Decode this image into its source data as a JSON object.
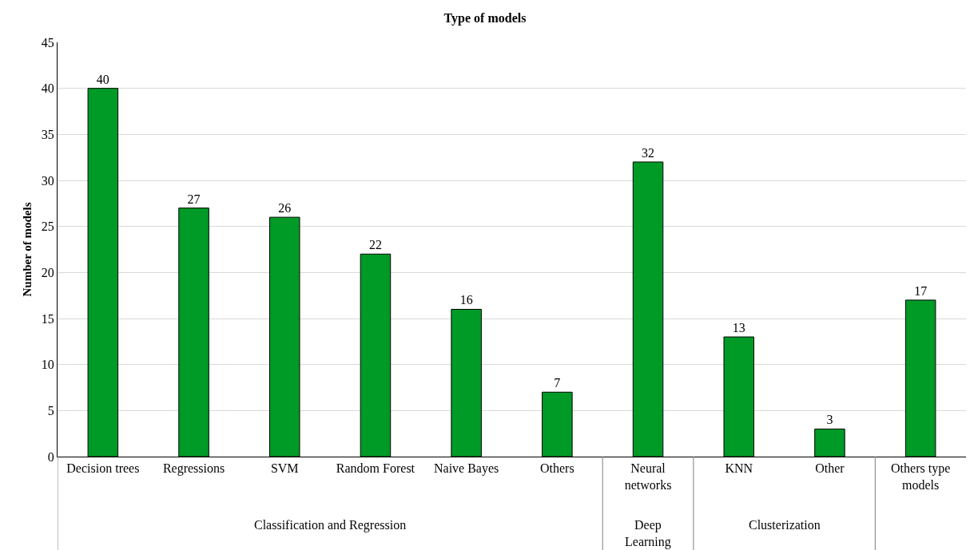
{
  "chart_data": {
    "type": "bar",
    "title": "Type of models",
    "ylabel": "Number of models",
    "categories": [
      "Decision trees",
      "Regressions",
      "SVM",
      "Random Forest",
      "Naive Bayes",
      "Others",
      "Neural networks",
      "KNN",
      "Other",
      "Others type models"
    ],
    "values": [
      40,
      27,
      26,
      22,
      16,
      7,
      32,
      13,
      3,
      17
    ],
    "color": "#009a26",
    "ylim": [
      0,
      45
    ],
    "yticks": [
      0,
      5,
      10,
      15,
      20,
      25,
      30,
      35,
      40,
      45
    ],
    "grid": "y",
    "data_labels": true,
    "annotations": [
      "Classification and Regression",
      "Deep Learning",
      "Clusterization"
    ]
  }
}
